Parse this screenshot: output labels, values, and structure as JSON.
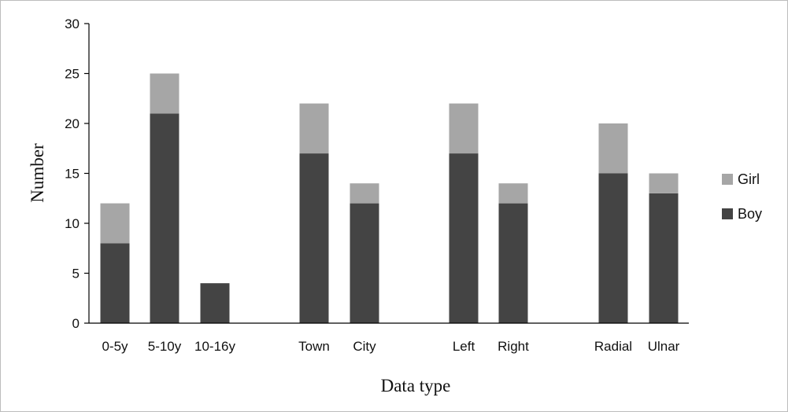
{
  "chart_data": {
    "type": "bar",
    "stacked": true,
    "categories": [
      "0-5y",
      "5-10y",
      "10-16y",
      "Town",
      "City",
      "Left",
      "Right",
      "Radial",
      "Ulnar"
    ],
    "category_groups": [
      [
        0,
        1,
        2
      ],
      [
        3,
        4
      ],
      [
        5,
        6
      ],
      [
        7,
        8
      ]
    ],
    "series": [
      {
        "name": "Boy",
        "color": "#444444",
        "values": [
          8,
          21,
          4,
          17,
          12,
          17,
          12,
          15,
          13
        ]
      },
      {
        "name": "Girl",
        "color": "#a6a6a6",
        "values": [
          4,
          4,
          0,
          5,
          2,
          5,
          2,
          5,
          2
        ]
      }
    ],
    "title": "",
    "xlabel": "Data type",
    "ylabel": "Number",
    "ylim": [
      0,
      30
    ],
    "yticks": [
      0,
      5,
      10,
      15,
      20,
      25,
      30
    ],
    "grid": false,
    "legend": {
      "position": "right",
      "order": [
        "Girl",
        "Boy"
      ]
    }
  }
}
